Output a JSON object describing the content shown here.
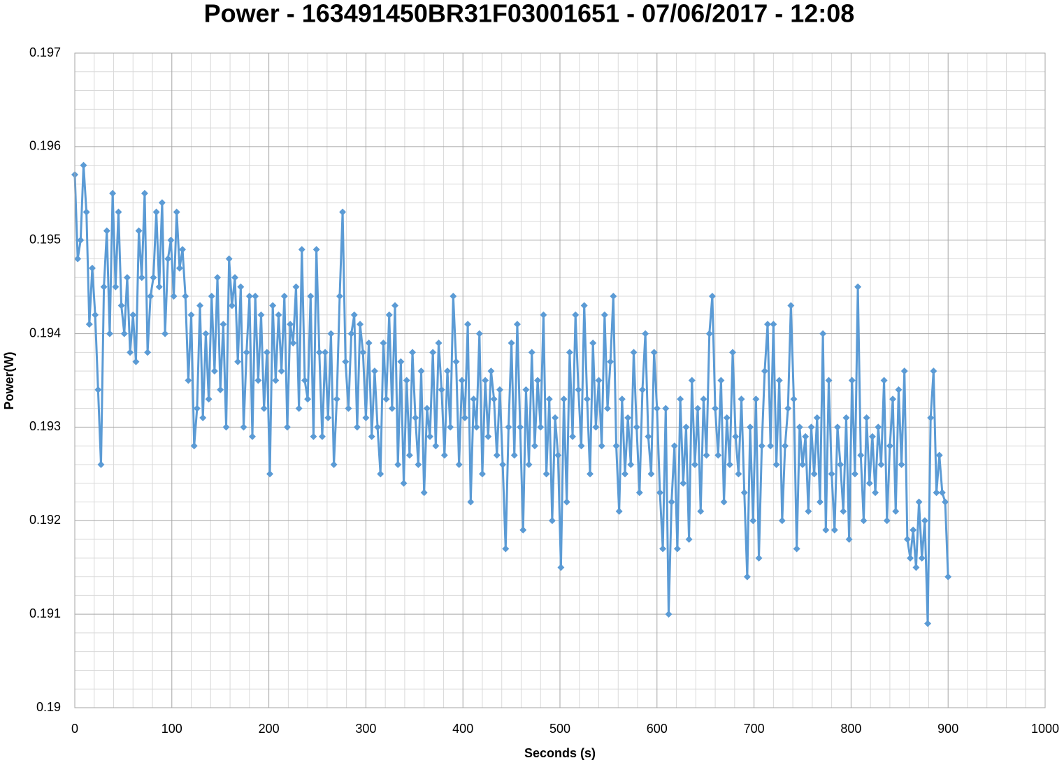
{
  "chart_data": {
    "type": "line",
    "title": "Power - 163491450BR31F03001651 - 07/06/2017 - 12:08",
    "xlabel": "Seconds (s)",
    "ylabel": "Power(W)",
    "xlim": [
      0,
      1000
    ],
    "xticks": [
      0,
      100,
      200,
      300,
      400,
      500,
      600,
      700,
      800,
      900,
      1000
    ],
    "ylim": [
      0.19,
      0.197
    ],
    "yticks": [
      0.19,
      0.191,
      0.192,
      0.193,
      0.194,
      0.195,
      0.196,
      0.197
    ],
    "grid": true,
    "minor_grid_divisions": 5,
    "marker": "diamond",
    "x": [
      0,
      3,
      6,
      9,
      12,
      15,
      18,
      21,
      24,
      27,
      30,
      33,
      36,
      39,
      42,
      45,
      48,
      51,
      54,
      57,
      60,
      63,
      66,
      69,
      72,
      75,
      78,
      81,
      84,
      87,
      90,
      93,
      96,
      99,
      102,
      105,
      108,
      111,
      114,
      117,
      120,
      123,
      126,
      129,
      132,
      135,
      138,
      141,
      144,
      147,
      150,
      153,
      156,
      159,
      162,
      165,
      168,
      171,
      174,
      177,
      180,
      183,
      186,
      189,
      192,
      195,
      198,
      201,
      204,
      207,
      210,
      213,
      216,
      219,
      222,
      225,
      228,
      231,
      234,
      237,
      240,
      243,
      246,
      249,
      252,
      255,
      258,
      261,
      264,
      267,
      270,
      273,
      276,
      279,
      282,
      285,
      288,
      291,
      294,
      297,
      300,
      303,
      306,
      309,
      312,
      315,
      318,
      321,
      324,
      327,
      330,
      333,
      336,
      339,
      342,
      345,
      348,
      351,
      354,
      357,
      360,
      363,
      366,
      369,
      372,
      375,
      378,
      381,
      384,
      387,
      390,
      393,
      396,
      399,
      402,
      405,
      408,
      411,
      414,
      417,
      420,
      423,
      426,
      429,
      432,
      435,
      438,
      441,
      444,
      447,
      450,
      453,
      456,
      459,
      462,
      465,
      468,
      471,
      474,
      477,
      480,
      483,
      486,
      489,
      492,
      495,
      498,
      501,
      504,
      507,
      510,
      513,
      516,
      519,
      522,
      525,
      528,
      531,
      534,
      537,
      540,
      543,
      546,
      549,
      552,
      555,
      558,
      561,
      564,
      567,
      570,
      573,
      576,
      579,
      582,
      585,
      588,
      591,
      594,
      597,
      600,
      603,
      606,
      609,
      612,
      615,
      618,
      621,
      624,
      627,
      630,
      633,
      636,
      639,
      642,
      645,
      648,
      651,
      654,
      657,
      660,
      663,
      666,
      669,
      672,
      675,
      678,
      681,
      684,
      687,
      690,
      693,
      696,
      699,
      702,
      705,
      708,
      711,
      714,
      717,
      720,
      723,
      726,
      729,
      732,
      735,
      738,
      741,
      744,
      747,
      750,
      753,
      756,
      759,
      762,
      765,
      768,
      771,
      774,
      777,
      780,
      783,
      786,
      789,
      792,
      795,
      798,
      801,
      804,
      807,
      810,
      813,
      816,
      819,
      822,
      825,
      828,
      831,
      834,
      837,
      840,
      843,
      846,
      849,
      852,
      855,
      858,
      861,
      864,
      867,
      870,
      873,
      876,
      879,
      882,
      885,
      888,
      891,
      894,
      897,
      900
    ],
    "series": [
      {
        "name": "Power(W)",
        "color": "#5b9bd5",
        "values": [
          0.1957,
          0.1948,
          0.195,
          0.1958,
          0.1953,
          0.1941,
          0.1947,
          0.1942,
          0.1934,
          0.1926,
          0.1945,
          0.1951,
          0.194,
          0.1955,
          0.1945,
          0.1953,
          0.1943,
          0.194,
          0.1946,
          0.1938,
          0.1942,
          0.1937,
          0.1951,
          0.1946,
          0.1955,
          0.1938,
          0.1944,
          0.1946,
          0.1953,
          0.1945,
          0.1954,
          0.194,
          0.1948,
          0.195,
          0.1944,
          0.1953,
          0.1947,
          0.1949,
          0.1944,
          0.1935,
          0.1942,
          0.1928,
          0.1932,
          0.1943,
          0.1931,
          0.194,
          0.1933,
          0.1944,
          0.1936,
          0.1946,
          0.1934,
          0.1941,
          0.193,
          0.1948,
          0.1943,
          0.1946,
          0.1937,
          0.1945,
          0.193,
          0.1938,
          0.1944,
          0.1929,
          0.1944,
          0.1935,
          0.1942,
          0.1932,
          0.1938,
          0.1925,
          0.1943,
          0.1935,
          0.1942,
          0.1936,
          0.1944,
          0.193,
          0.1941,
          0.1939,
          0.1945,
          0.1932,
          0.1949,
          0.1935,
          0.1933,
          0.1944,
          0.1929,
          0.1949,
          0.1938,
          0.1929,
          0.1938,
          0.1931,
          0.194,
          0.1926,
          0.1933,
          0.1944,
          0.1953,
          0.1937,
          0.1932,
          0.194,
          0.1942,
          0.193,
          0.1941,
          0.1938,
          0.1931,
          0.1939,
          0.1929,
          0.1936,
          0.193,
          0.1925,
          0.1939,
          0.1933,
          0.1942,
          0.1932,
          0.1943,
          0.1926,
          0.1937,
          0.1924,
          0.1935,
          0.1927,
          0.1938,
          0.1931,
          0.1926,
          0.1936,
          0.1923,
          0.1932,
          0.1929,
          0.1938,
          0.1928,
          0.1939,
          0.1934,
          0.1927,
          0.1936,
          0.193,
          0.1944,
          0.1937,
          0.1926,
          0.1935,
          0.1931,
          0.1941,
          0.1922,
          0.1933,
          0.193,
          0.194,
          0.1925,
          0.1935,
          0.1929,
          0.1936,
          0.1933,
          0.1927,
          0.1934,
          0.1926,
          0.1917,
          0.193,
          0.1939,
          0.1927,
          0.1941,
          0.193,
          0.1919,
          0.1934,
          0.1926,
          0.1938,
          0.1928,
          0.1935,
          0.193,
          0.1942,
          0.1925,
          0.1933,
          0.192,
          0.1931,
          0.1927,
          0.1915,
          0.1933,
          0.1922,
          0.1938,
          0.1929,
          0.1942,
          0.1934,
          0.1928,
          0.1943,
          0.1933,
          0.1925,
          0.1939,
          0.193,
          0.1935,
          0.1928,
          0.1942,
          0.1932,
          0.1937,
          0.1944,
          0.1928,
          0.1921,
          0.1933,
          0.1925,
          0.1931,
          0.1926,
          0.1938,
          0.193,
          0.1923,
          0.1934,
          0.194,
          0.1929,
          0.1925,
          0.1938,
          0.1932,
          0.1923,
          0.1917,
          0.1932,
          0.191,
          0.1922,
          0.1928,
          0.1917,
          0.1933,
          0.1924,
          0.193,
          0.1918,
          0.1935,
          0.1926,
          0.1932,
          0.1921,
          0.1933,
          0.1927,
          0.194,
          0.1944,
          0.1932,
          0.1927,
          0.1935,
          0.1922,
          0.1931,
          0.1926,
          0.1938,
          0.1929,
          0.1925,
          0.1933,
          0.1923,
          0.1914,
          0.193,
          0.192,
          0.1933,
          0.1916,
          0.1928,
          0.1936,
          0.1941,
          0.1928,
          0.1941,
          0.1926,
          0.1935,
          0.192,
          0.1928,
          0.1932,
          0.1943,
          0.1933,
          0.1917,
          0.193,
          0.1926,
          0.1929,
          0.1921,
          0.193,
          0.1925,
          0.1931,
          0.1922,
          0.194,
          0.1919,
          0.1935,
          0.1925,
          0.1919,
          0.193,
          0.1926,
          0.1921,
          0.1931,
          0.1918,
          0.1935,
          0.1925,
          0.1945,
          0.1927,
          0.192,
          0.1931,
          0.1924,
          0.1929,
          0.1923,
          0.193,
          0.1926,
          0.1935,
          0.192,
          0.1928,
          0.1933,
          0.1921,
          0.1934,
          0.1926,
          0.1936,
          0.1918,
          0.1916,
          0.1919,
          0.1915,
          0.1922,
          0.1916,
          0.192,
          0.1909,
          0.1931,
          0.1936,
          0.1923,
          0.1927,
          0.1923,
          0.1922,
          0.1914
        ]
      }
    ]
  }
}
